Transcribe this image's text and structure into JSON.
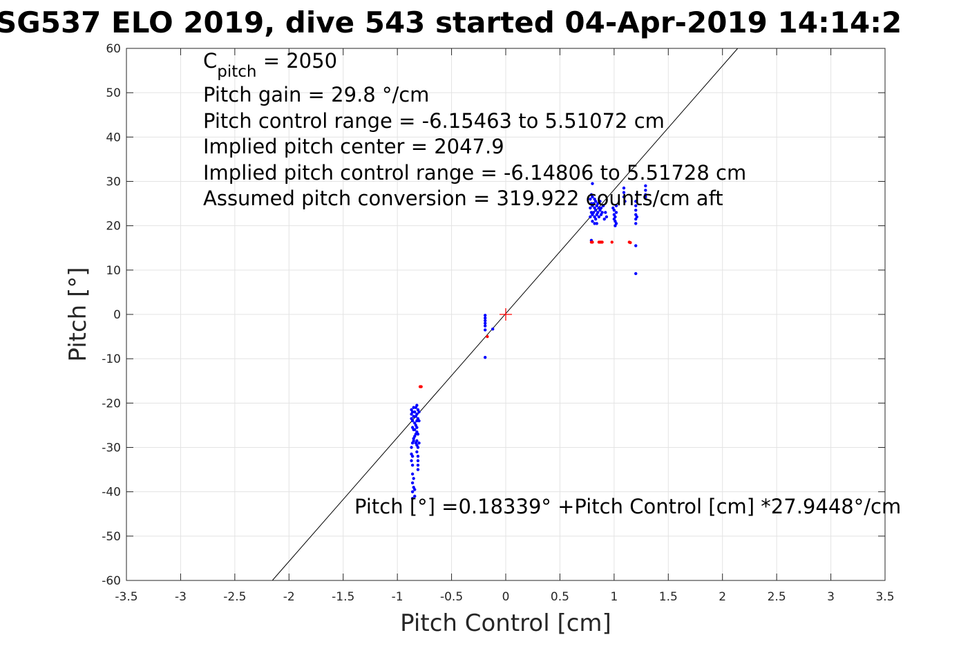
{
  "chart_data": {
    "type": "scatter",
    "title": "SG537 ELO 2019, dive 543 started 04-Apr-2019 14:14:2",
    "xlabel": "Pitch Control [cm]",
    "ylabel": "Pitch [°]",
    "xlim": [
      -3.5,
      3.5
    ],
    "ylim": [
      -60,
      60
    ],
    "xticks": [
      -3.5,
      -3,
      -2.5,
      -2,
      -1.5,
      -1,
      -0.5,
      0,
      0.5,
      1,
      1.5,
      2,
      2.5,
      3,
      3.5
    ],
    "xtick_labels": [
      "-3.5",
      "-3",
      "-2.5",
      "-2",
      "-1.5",
      "-1",
      "-0.5",
      "0",
      "0.5",
      "1",
      "1.5",
      "2",
      "2.5",
      "3",
      "3.5"
    ],
    "yticks": [
      -60,
      -50,
      -40,
      -30,
      -20,
      -10,
      0,
      10,
      20,
      30,
      40,
      50,
      60
    ],
    "ytick_labels": [
      "-60",
      "-50",
      "-40",
      "-30",
      "-20",
      "-10",
      "0",
      "10",
      "20",
      "30",
      "40",
      "50",
      "60"
    ],
    "grid": true,
    "colors": {
      "good": "#0000ff",
      "flagged": "#ff0000",
      "fit": "#000000",
      "center": "#ff0000",
      "grid": "#e3e3e3",
      "axes": "#262626"
    },
    "annotations": {
      "c_pitch_symbol": "C",
      "c_pitch_subscript": "pitch",
      "c_pitch_value": " = 2050",
      "lines": [
        "Pitch gain = 29.8 °/cm",
        "Pitch control range = -6.15463 to 5.51072 cm",
        "Implied pitch center = 2047.9",
        "Implied pitch control range = -6.14806 to 5.51728 cm",
        "Assumed pitch conversion = 319.922 counts/cm aft"
      ],
      "fit_equation": "Pitch [°] =0.18339° +Pitch Control [cm] *27.9448°/cm"
    },
    "fit_line": {
      "intercept": 0.18339,
      "slope": 27.9448
    },
    "center_marker": {
      "x": 0,
      "y": 0
    },
    "series": [
      {
        "values": [
          [
            -0.87,
            -21.5
          ],
          [
            -0.87,
            -22.5
          ],
          [
            -0.87,
            -23.5
          ],
          [
            -0.86,
            -22.0
          ],
          [
            -0.86,
            -24.0
          ],
          [
            -0.86,
            -25.5
          ],
          [
            -0.85,
            -21.0
          ],
          [
            -0.85,
            -23.0
          ],
          [
            -0.85,
            -26.0
          ],
          [
            -0.85,
            -28.0
          ],
          [
            -0.84,
            -22.0
          ],
          [
            -0.84,
            -24.5
          ],
          [
            -0.84,
            -27.5
          ],
          [
            -0.83,
            -21.0
          ],
          [
            -0.83,
            -23.0
          ],
          [
            -0.83,
            -25.0
          ],
          [
            -0.83,
            -29.0
          ],
          [
            -0.82,
            -20.5
          ],
          [
            -0.82,
            -22.5
          ],
          [
            -0.82,
            -24.0
          ],
          [
            -0.82,
            -26.5
          ],
          [
            -0.82,
            -28.5
          ],
          [
            -0.82,
            -31.0
          ],
          [
            -0.81,
            -21.5
          ],
          [
            -0.81,
            -23.5
          ],
          [
            -0.81,
            -27.0
          ],
          [
            -0.81,
            -30.0
          ],
          [
            -0.81,
            -33.0
          ],
          [
            -0.81,
            -35.0
          ],
          [
            -0.8,
            -22.0
          ],
          [
            -0.8,
            -24.0
          ],
          [
            -0.8,
            -29.0
          ],
          [
            -0.84,
            -26.0
          ],
          [
            -0.83,
            -27.0
          ],
          [
            -0.85,
            -28.5
          ],
          [
            -0.82,
            -29.5
          ],
          [
            -0.86,
            -29.0
          ],
          [
            -0.87,
            -30.0
          ],
          [
            -0.87,
            -31.5
          ],
          [
            -0.87,
            -33.0
          ],
          [
            -0.86,
            -32.0
          ],
          [
            -0.86,
            -34.0
          ],
          [
            -0.86,
            -36.0
          ],
          [
            -0.86,
            -38.0
          ],
          [
            -0.86,
            -40.0
          ],
          [
            -0.86,
            -41.5
          ],
          [
            -0.85,
            -37.0
          ],
          [
            -0.85,
            -39.0
          ],
          [
            -0.84,
            -41.0
          ],
          [
            -0.84,
            -39.5
          ],
          [
            -0.81,
            -32.0
          ],
          [
            -0.81,
            -34.0
          ],
          [
            -0.82,
            -25.5
          ],
          [
            -0.19,
            -0.2
          ],
          [
            -0.19,
            -0.8
          ],
          [
            -0.19,
            -1.4
          ],
          [
            -0.19,
            -2.0
          ],
          [
            -0.19,
            -2.6
          ],
          [
            -0.19,
            -3.5
          ],
          [
            -0.12,
            -3.3
          ],
          [
            -0.19,
            -9.7
          ],
          [
            0.78,
            22.0
          ],
          [
            0.78,
            24.0
          ],
          [
            0.78,
            26.0
          ],
          [
            0.79,
            23.0
          ],
          [
            0.79,
            25.0
          ],
          [
            0.79,
            27.0
          ],
          [
            0.8,
            21.0
          ],
          [
            0.8,
            22.5
          ],
          [
            0.8,
            24.5
          ],
          [
            0.8,
            26.5
          ],
          [
            0.8,
            29.5
          ],
          [
            0.81,
            23.0
          ],
          [
            0.81,
            25.0
          ],
          [
            0.82,
            20.5
          ],
          [
            0.82,
            22.0
          ],
          [
            0.82,
            24.0
          ],
          [
            0.82,
            26.0
          ],
          [
            0.83,
            21.5
          ],
          [
            0.83,
            23.5
          ],
          [
            0.83,
            25.5
          ],
          [
            0.84,
            20.5
          ],
          [
            0.84,
            22.5
          ],
          [
            0.84,
            24.5
          ],
          [
            0.85,
            23.0
          ],
          [
            0.85,
            25.0
          ],
          [
            0.86,
            22.0
          ],
          [
            0.86,
            24.0
          ],
          [
            0.87,
            23.5
          ],
          [
            0.87,
            25.5
          ],
          [
            0.88,
            22.5
          ],
          [
            0.88,
            24.0
          ],
          [
            0.89,
            23.0
          ],
          [
            0.9,
            24.5
          ],
          [
            0.91,
            21.5
          ],
          [
            0.92,
            23.0
          ],
          [
            0.93,
            22.0
          ],
          [
            1.0,
            21.5
          ],
          [
            1.0,
            22.5
          ],
          [
            1.0,
            23.5
          ],
          [
            1.01,
            20.0
          ],
          [
            1.01,
            21.0
          ],
          [
            1.01,
            22.0
          ],
          [
            1.02,
            20.5
          ],
          [
            1.02,
            23.0
          ],
          [
            1.02,
            24.5
          ],
          [
            0.99,
            24.0
          ],
          [
            1.09,
            27.5
          ],
          [
            1.09,
            28.5
          ],
          [
            1.09,
            26.5
          ],
          [
            1.1,
            25.5
          ],
          [
            1.2,
            20.5
          ],
          [
            1.2,
            21.5
          ],
          [
            1.2,
            22.5
          ],
          [
            1.2,
            23.5
          ],
          [
            1.2,
            24.5
          ],
          [
            1.2,
            25.5
          ],
          [
            1.21,
            22.0
          ],
          [
            1.21,
            27.0
          ],
          [
            1.2,
            15.5
          ],
          [
            1.2,
            9.2
          ],
          [
            1.29,
            27.0
          ],
          [
            1.29,
            28.0
          ],
          [
            1.29,
            29.0
          ],
          [
            1.29,
            26.5
          ],
          [
            0.79,
            16.7
          ]
        ]
      },
      {
        "values": [
          [
            -0.79,
            -16.3
          ],
          [
            -0.78,
            -16.3
          ],
          [
            -0.17,
            -5.0
          ],
          [
            0.79,
            16.3
          ],
          [
            0.8,
            16.3
          ],
          [
            0.86,
            16.3
          ],
          [
            0.87,
            16.3
          ],
          [
            0.88,
            16.3
          ],
          [
            0.89,
            16.3
          ],
          [
            0.98,
            16.3
          ],
          [
            1.14,
            16.3
          ],
          [
            1.15,
            16.2
          ]
        ]
      }
    ]
  }
}
